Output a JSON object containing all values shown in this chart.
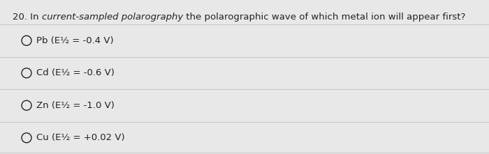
{
  "question_parts": [
    {
      "text": "20. In ",
      "italic": false
    },
    {
      "text": "current-sampled polarography",
      "italic": true
    },
    {
      "text": " the polarographic wave of which metal ion will appear first?",
      "italic": false
    }
  ],
  "options": [
    "Pb (E½ = -0.4 V)",
    "Cd (E½ = -0.6 V)",
    "Zn (E½ = -1.0 V)",
    "Cu (E½ = +0.02 V)"
  ],
  "background_color": "#e8e8e8",
  "inner_background": "#f5f5f5",
  "text_color": "#222222",
  "line_color": "#c8c8c8",
  "question_fontsize": 9.5,
  "option_fontsize": 9.5,
  "figwidth": 7.0,
  "figheight": 2.21,
  "dpi": 100
}
